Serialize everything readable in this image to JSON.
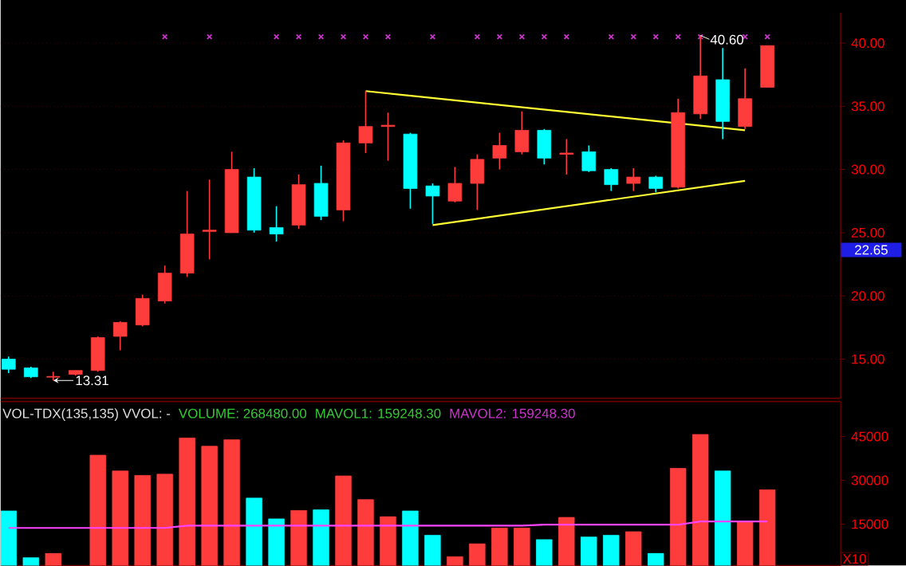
{
  "chart_data": [
    {
      "type": "candlestick",
      "categories": [
        null,
        null,
        null,
        null,
        null,
        null,
        null,
        null,
        null,
        null,
        null,
        null,
        null,
        null,
        null,
        null,
        null,
        null,
        null,
        null,
        null,
        null,
        null,
        null,
        null,
        null,
        null,
        null,
        null,
        null,
        null,
        null,
        null,
        null,
        null
      ],
      "ohlc": [
        [
          15.0,
          15.2,
          13.9,
          14.2
        ],
        [
          14.3,
          14.4,
          13.5,
          13.6
        ],
        [
          13.6,
          14.0,
          13.31,
          13.6
        ],
        [
          13.8,
          14.1,
          13.7,
          14.1
        ],
        [
          14.1,
          16.8,
          14.0,
          16.7
        ],
        [
          16.8,
          18.0,
          15.7,
          17.9
        ],
        [
          17.7,
          20.1,
          17.6,
          19.8
        ],
        [
          19.6,
          22.4,
          19.4,
          21.8
        ],
        [
          21.8,
          28.3,
          21.5,
          24.9
        ],
        [
          25.1,
          29.2,
          22.9,
          25.2
        ],
        [
          25.0,
          31.4,
          25.0,
          30.0
        ],
        [
          29.4,
          30.1,
          25.0,
          25.2
        ],
        [
          25.4,
          27.1,
          24.3,
          24.9
        ],
        [
          25.6,
          29.6,
          25.3,
          28.8
        ],
        [
          28.9,
          30.3,
          26.0,
          26.3
        ],
        [
          26.8,
          32.3,
          25.9,
          32.1
        ],
        [
          32.1,
          36.2,
          31.3,
          33.4
        ],
        [
          33.4,
          34.5,
          30.7,
          33.5
        ],
        [
          32.8,
          32.9,
          26.9,
          28.5
        ],
        [
          28.7,
          28.9,
          25.7,
          27.9
        ],
        [
          27.5,
          30.2,
          27.4,
          28.9
        ],
        [
          28.9,
          31.2,
          26.8,
          30.8
        ],
        [
          30.9,
          32.9,
          30.0,
          31.9
        ],
        [
          31.4,
          34.6,
          31.2,
          33.1
        ],
        [
          33.1,
          33.2,
          30.4,
          30.9
        ],
        [
          31.2,
          32.4,
          29.6,
          31.3
        ],
        [
          31.4,
          31.9,
          29.8,
          29.9
        ],
        [
          30.0,
          30.1,
          28.3,
          28.8
        ],
        [
          28.9,
          30.1,
          28.3,
          29.4
        ],
        [
          29.4,
          29.5,
          28.2,
          28.5
        ],
        [
          28.6,
          35.6,
          28.5,
          34.5
        ],
        [
          34.4,
          40.6,
          34.0,
          37.4
        ],
        [
          37.1,
          39.6,
          32.4,
          33.8
        ],
        [
          33.4,
          38.0,
          33.2,
          35.6
        ],
        [
          36.5,
          39.8,
          36.5,
          39.8
        ]
      ],
      "colors": [
        "#00ffff",
        "#00ffff",
        "#ff3c3c",
        "#ff3c3c",
        "#ff3c3c",
        "#ff3c3c",
        "#ff3c3c",
        "#ff3c3c",
        "#ff3c3c",
        "#ff3c3c",
        "#ff3c3c",
        "#00ffff",
        "#00ffff",
        "#ff3c3c",
        "#00ffff",
        "#ff3c3c",
        "#ff3c3c",
        "#ff3c3c",
        "#00ffff",
        "#00ffff",
        "#ff3c3c",
        "#ff3c3c",
        "#ff3c3c",
        "#ff3c3c",
        "#00ffff",
        "#ff3c3c",
        "#00ffff",
        "#00ffff",
        "#ff3c3c",
        "#00ffff",
        "#ff3c3c",
        "#ff3c3c",
        "#00ffff",
        "#ff3c3c",
        "#ff3c3c"
      ],
      "series": [
        {
          "type": "line",
          "color": "#ffff33",
          "values": [
            null,
            null,
            null,
            null,
            null,
            null,
            null,
            null,
            null,
            null,
            null,
            null,
            null,
            null,
            null,
            null,
            36.2,
            null,
            null,
            null,
            null,
            null,
            null,
            null,
            null,
            null,
            null,
            null,
            null,
            null,
            null,
            null,
            null,
            33.1,
            null
          ]
        },
        {
          "type": "line",
          "color": "#ffff33",
          "values": [
            null,
            null,
            null,
            null,
            null,
            null,
            null,
            null,
            null,
            null,
            null,
            null,
            null,
            null,
            null,
            null,
            null,
            null,
            null,
            25.6,
            null,
            null,
            null,
            null,
            null,
            null,
            null,
            null,
            null,
            null,
            null,
            null,
            null,
            29.1,
            null
          ]
        },
        {
          "type": "scatter",
          "marker": "cross",
          "color": "#cc33cc",
          "values": [
            null,
            null,
            null,
            null,
            null,
            null,
            null,
            40.5,
            null,
            40.5,
            null,
            null,
            40.5,
            40.5,
            40.5,
            40.5,
            40.5,
            40.5,
            null,
            40.5,
            null,
            40.5,
            40.5,
            40.5,
            40.5,
            40.5,
            null,
            40.5,
            40.5,
            40.5,
            40.5,
            40.5,
            null,
            40.5,
            40.5
          ]
        }
      ],
      "ylim": [
        11.9,
        42.4
      ],
      "yticks": [
        {
          "value": 15,
          "label": "15.00"
        },
        {
          "value": 20,
          "label": "20.00"
        },
        {
          "value": 25,
          "label": "25.00"
        },
        {
          "value": 30,
          "label": "30.00"
        },
        {
          "value": 35,
          "label": "35.00"
        },
        {
          "value": 40,
          "label": "40.00"
        }
      ],
      "grid": "y",
      "tick_labels": "y",
      "annotations": [
        "40.60",
        "13.31",
        "22.65"
      ]
    },
    {
      "type": "bar",
      "categories": [
        null,
        null,
        null,
        null,
        null,
        null,
        null,
        null,
        null,
        null,
        null,
        null,
        null,
        null,
        null,
        null,
        null,
        null,
        null,
        null,
        null,
        null,
        null,
        null,
        null,
        null,
        null,
        null,
        null,
        null,
        null,
        null,
        null,
        null,
        null
      ],
      "series": [
        {
          "type": "bar",
          "values": [
            19500,
            3500,
            5000,
            null,
            38600,
            33200,
            31700,
            32100,
            44500,
            41700,
            43900,
            23900,
            16800,
            19700,
            19900,
            31500,
            23400,
            17600,
            19500,
            11200,
            3900,
            8300,
            13700,
            13700,
            9700,
            17300,
            10600,
            11200,
            12400,
            5000,
            34100,
            45700,
            33200,
            15700,
            26800
          ],
          "colors": [
            "#00ffff",
            "#00ffff",
            "#ff3c3c",
            "#ff3c3c",
            "#ff3c3c",
            "#ff3c3c",
            "#ff3c3c",
            "#ff3c3c",
            "#ff3c3c",
            "#ff3c3c",
            "#ff3c3c",
            "#00ffff",
            "#00ffff",
            "#ff3c3c",
            "#00ffff",
            "#ff3c3c",
            "#ff3c3c",
            "#ff3c3c",
            "#00ffff",
            "#00ffff",
            "#ff3c3c",
            "#ff3c3c",
            "#ff3c3c",
            "#ff3c3c",
            "#00ffff",
            "#ff3c3c",
            "#00ffff",
            "#00ffff",
            "#ff3c3c",
            "#00ffff",
            "#ff3c3c",
            "#ff3c3c",
            "#00ffff",
            "#ff3c3c",
            "#ff3c3c"
          ]
        },
        {
          "type": "line",
          "color": "#ff44ff",
          "values": [
            13700,
            13700,
            13700,
            13700,
            13700,
            13700,
            13700,
            13700,
            14500,
            14500,
            14500,
            14500,
            14500,
            14500,
            14500,
            14500,
            14500,
            14500,
            14500,
            14500,
            14500,
            14500,
            14500,
            14500,
            14800,
            14800,
            14800,
            14800,
            14800,
            14800,
            14800,
            15900,
            15900,
            15900,
            15900
          ]
        }
      ],
      "ylim": [
        800,
        57000
      ],
      "yticks": [
        15000,
        30000,
        45000
      ],
      "tick_labels": "y",
      "annotations": [
        "VOL-TDX(135,135)  VVOL: -",
        "VOLUME: 268480.00",
        "MAVOL1: 159248.30",
        "MAVOL2: 159248.30",
        "X10"
      ]
    }
  ]
}
